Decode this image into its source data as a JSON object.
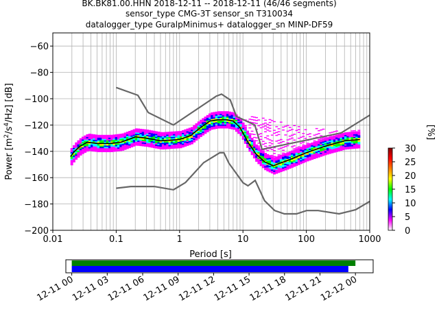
{
  "chart_data": {
    "type": "heatmap",
    "title_lines": [
      "BK.BK81.00.HHN   2018-12-11 -- 2018-12-11  (46/46 segments)",
      "sensor_type CMG-3T sensor_sn T310034",
      "datalogger_type GuralpMinimus+ datalogger_sn MINP-DF59"
    ],
    "xlabel": "Period [s]",
    "ylabel_parts": [
      "Power [m",
      "2",
      "/s",
      "4",
      "/Hz] [dB]"
    ],
    "x_scale": "log",
    "xlim": [
      0.01,
      1000
    ],
    "ylim": [
      -200,
      -50
    ],
    "x_ticks": [
      {
        "v": 0.01,
        "label": "0.01"
      },
      {
        "v": 0.1,
        "label": "0.1"
      },
      {
        "v": 1,
        "label": "1"
      },
      {
        "v": 10,
        "label": "10"
      },
      {
        "v": 100,
        "label": "100"
      },
      {
        "v": 1000,
        "label": "1000"
      }
    ],
    "y_ticks": [
      {
        "v": -60,
        "label": "−60"
      },
      {
        "v": -80,
        "label": "−80"
      },
      {
        "v": -100,
        "label": "−100"
      },
      {
        "v": -120,
        "label": "−120"
      },
      {
        "v": -140,
        "label": "−140"
      },
      {
        "v": -160,
        "label": "−160"
      },
      {
        "v": -180,
        "label": "−180"
      },
      {
        "v": -200,
        "label": "−200"
      }
    ],
    "grid": true,
    "nhnm": [
      [
        0.1,
        -91.5
      ],
      [
        0.22,
        -97.4
      ],
      [
        0.32,
        -110.5
      ],
      [
        0.8,
        -120
      ],
      [
        3.8,
        -98
      ],
      [
        4.6,
        -96.5
      ],
      [
        6.3,
        -101
      ],
      [
        7.9,
        -113.5
      ],
      [
        15.4,
        -120
      ],
      [
        20,
        -138.5
      ],
      [
        354.8,
        -126
      ],
      [
        1000,
        -112.5
      ]
    ],
    "nlnm": [
      [
        0.1,
        -168
      ],
      [
        0.17,
        -166.7
      ],
      [
        0.4,
        -166.7
      ],
      [
        0.8,
        -169.2
      ],
      [
        1.24,
        -163.7
      ],
      [
        2.4,
        -148.6
      ],
      [
        4.3,
        -141.1
      ],
      [
        5,
        -141.1
      ],
      [
        6,
        -149
      ],
      [
        10,
        -163.8
      ],
      [
        12,
        -166.2
      ],
      [
        15.6,
        -162.1
      ],
      [
        21.9,
        -177.5
      ],
      [
        31.6,
        -185
      ],
      [
        45,
        -187.5
      ],
      [
        70,
        -187.5
      ],
      [
        101,
        -185
      ],
      [
        154,
        -185
      ],
      [
        328,
        -187.5
      ],
      [
        600,
        -184.4
      ],
      [
        1000,
        -178
      ]
    ],
    "mode": [
      [
        0.019,
        -144
      ],
      [
        0.022,
        -140
      ],
      [
        0.027,
        -136
      ],
      [
        0.035,
        -133
      ],
      [
        0.05,
        -134
      ],
      [
        0.08,
        -134
      ],
      [
        0.12,
        -133
      ],
      [
        0.2,
        -129
      ],
      [
        0.3,
        -130
      ],
      [
        0.5,
        -132
      ],
      [
        1,
        -131
      ],
      [
        1.5,
        -128
      ],
      [
        2,
        -123
      ],
      [
        3,
        -117
      ],
      [
        4,
        -116
      ],
      [
        5.5,
        -116
      ],
      [
        7,
        -117
      ],
      [
        9,
        -122
      ],
      [
        12,
        -133
      ],
      [
        16,
        -142
      ],
      [
        22,
        -148
      ],
      [
        30,
        -151
      ],
      [
        50,
        -147
      ],
      [
        100,
        -141
      ],
      [
        200,
        -136
      ],
      [
        400,
        -132
      ],
      [
        700,
        -131
      ]
    ],
    "spread_band": {
      "min_offset": -6,
      "max_offset": 6
    },
    "noise_tail": {
      "x_from": 10,
      "x_to": 700,
      "top": [
        [
          10,
          -113
        ],
        [
          30,
          -116
        ],
        [
          100,
          -122
        ],
        [
          700,
          -124
        ]
      ]
    },
    "colorbar": {
      "label": "[%]",
      "range": [
        0,
        30
      ],
      "ticks": [
        {
          "v": 0,
          "label": "0"
        },
        {
          "v": 5,
          "label": "5"
        },
        {
          "v": 10,
          "label": "10"
        },
        {
          "v": 15,
          "label": "15"
        },
        {
          "v": 20,
          "label": "20"
        },
        {
          "v": 25,
          "label": "25"
        },
        {
          "v": 30,
          "label": "30"
        }
      ],
      "stops": [
        "#ffffff",
        "#ff00ff",
        "#0000ff",
        "#00ffff",
        "#00ff00",
        "#ffff00",
        "#ff8000",
        "#ff0000",
        "#800000"
      ]
    },
    "coverage": {
      "ticks": [
        "12-11 00",
        "12-11 03",
        "12-11 06",
        "12-11 09",
        "12-11 12",
        "12-11 15",
        "12-11 18",
        "12-11 21",
        "12-12 00"
      ],
      "range_hours": [
        -0.5,
        25.5
      ],
      "data_span_hours": [
        0,
        24
      ],
      "used_span_hours": [
        0,
        23.4
      ],
      "data_color": "#008000",
      "used_color": "#0000ff"
    }
  }
}
